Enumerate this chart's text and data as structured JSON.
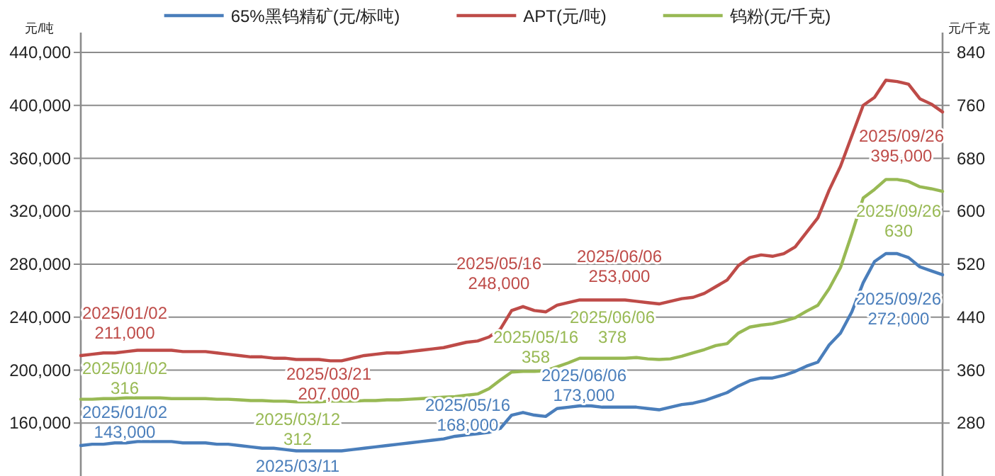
{
  "chart_data": {
    "type": "line",
    "ylabel": "元/吨",
    "y2label": "元/千克",
    "categories": [
      null,
      null,
      null,
      null,
      null,
      null,
      null,
      null,
      null,
      null,
      null,
      null,
      null,
      null,
      null,
      null,
      null,
      null,
      null,
      null,
      null,
      null,
      null,
      null,
      null,
      null,
      null,
      null,
      null,
      null,
      null,
      null,
      null,
      null,
      null,
      null,
      null,
      null,
      null,
      null,
      null,
      null,
      null,
      null,
      null,
      null,
      null,
      null,
      null,
      null,
      null,
      null,
      null,
      null,
      null,
      null,
      null,
      null,
      null,
      null,
      null,
      null,
      null,
      null,
      null,
      null,
      null,
      null,
      null,
      null,
      null,
      null,
      null,
      null,
      null,
      null,
      null
    ],
    "ylim": [
      120000,
      440000
    ],
    "yticks": [
      {
        "value": 160000,
        "label": "160,000"
      },
      {
        "value": 200000,
        "label": "200,000"
      },
      {
        "value": 240000,
        "label": "240,000"
      },
      {
        "value": 280000,
        "label": "280,000"
      },
      {
        "value": 320000,
        "label": "320,000"
      },
      {
        "value": 360000,
        "label": "360,000"
      },
      {
        "value": 400000,
        "label": "400,000"
      },
      {
        "value": 440000,
        "label": "440,000"
      }
    ],
    "y2lim": [
      200,
      840
    ],
    "y2ticks": [
      280,
      360,
      440,
      520,
      600,
      680,
      760,
      840
    ],
    "tick_labels": "y",
    "grid": "y",
    "legend": "top",
    "series": [
      {
        "name": "65%黑钨精矿(元/标吨)",
        "color": "#4a7ebb",
        "values": [
          143000,
          144000,
          144000,
          145000,
          145000,
          146000,
          146000,
          146000,
          146000,
          145000,
          145000,
          145000,
          144000,
          144000,
          143000,
          142000,
          141000,
          141000,
          140000,
          139000,
          139000,
          139000,
          139000,
          139000,
          140000,
          141000,
          142000,
          143000,
          144000,
          145000,
          146000,
          147000,
          148000,
          150000,
          151000,
          152000,
          153000,
          156000,
          166000,
          168000,
          166000,
          165000,
          171000,
          172000,
          173000,
          173000,
          172000,
          172000,
          172000,
          172000,
          171000,
          170000,
          172000,
          174000,
          175000,
          177000,
          180000,
          183000,
          188000,
          192000,
          194000,
          194000,
          196000,
          199000,
          203000,
          206000,
          219000,
          228000,
          244000,
          266000,
          282000,
          288000,
          288000,
          285000,
          278000,
          275000,
          272000
        ]
      },
      {
        "name": "APT(元/吨)",
        "color": "#be4b48",
        "values": [
          211000,
          212000,
          213000,
          213000,
          214000,
          215000,
          215000,
          215000,
          215000,
          214000,
          214000,
          214000,
          213000,
          212000,
          211000,
          210000,
          210000,
          209000,
          209000,
          208000,
          208000,
          208000,
          207000,
          207000,
          209000,
          211000,
          212000,
          213000,
          213000,
          214000,
          215000,
          216000,
          217000,
          219000,
          221000,
          222000,
          225000,
          231000,
          245000,
          248000,
          245000,
          244000,
          249000,
          251000,
          253000,
          253000,
          253000,
          253000,
          253000,
          252000,
          251000,
          250000,
          252000,
          254000,
          255000,
          258000,
          263000,
          268000,
          279000,
          285000,
          287000,
          286000,
          288000,
          293000,
          304000,
          315000,
          336000,
          354000,
          377000,
          400000,
          406000,
          419000,
          418000,
          416000,
          405000,
          401000,
          395000
        ]
      },
      {
        "name": "钨粉(元/千克)",
        "color": "#98b954",
        "axis": "y2",
        "values": [
          316,
          316,
          317,
          317,
          318,
          318,
          318,
          318,
          317,
          317,
          317,
          317,
          316,
          316,
          315,
          314,
          314,
          313,
          313,
          312,
          312,
          312,
          313,
          313,
          313,
          314,
          314,
          315,
          315,
          316,
          317,
          318,
          319,
          320,
          322,
          324,
          332,
          345,
          357,
          358,
          358,
          359,
          365,
          371,
          378,
          378,
          378,
          378,
          378,
          379,
          377,
          376,
          377,
          381,
          386,
          391,
          397,
          400,
          416,
          425,
          428,
          430,
          434,
          439,
          449,
          458,
          483,
          515,
          566,
          620,
          633,
          648,
          648,
          645,
          637,
          634,
          630
        ]
      }
    ],
    "annotations": [
      "2025/01/02\n211,000",
      "2025/01/02\n316",
      "2025/01/02\n143,000",
      "2025/03/21\n207,000",
      "2025/03/12\n312",
      "2025/03/11",
      "2025/05/16\n248,000",
      "2025/05/16\n358",
      "2025/05/16\n168,000",
      "2025/06/06\n253,000",
      "2025/06/06\n378",
      "2025/06/06\n173,000",
      "2025/09/26\n395,000",
      "2025/09/26\n630",
      "2025/09/26\n272,000"
    ]
  }
}
